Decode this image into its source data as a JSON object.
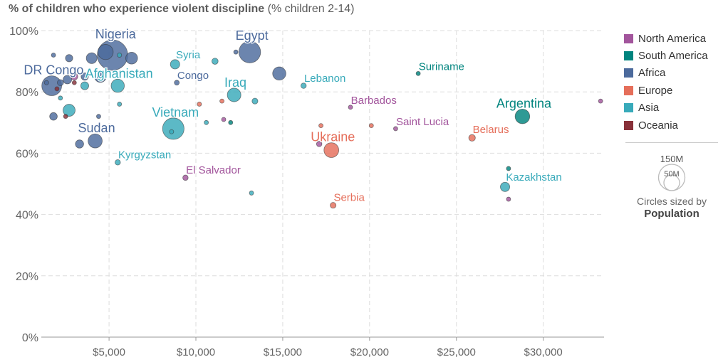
{
  "title": {
    "main": "% of children who experience violent discipline",
    "sub": " (% children 2-14)"
  },
  "legend": [
    {
      "name": "North America",
      "color": "#a2559c"
    },
    {
      "name": "South America",
      "color": "#00847e"
    },
    {
      "name": "Africa",
      "color": "#4c6a9c"
    },
    {
      "name": "Europe",
      "color": "#e56e5a"
    },
    {
      "name": "Asia",
      "color": "#38aaba"
    },
    {
      "name": "Oceania",
      "color": "#883039"
    }
  ],
  "size_legend": {
    "large_label": "150M",
    "small_label": "50M",
    "note": "Circles sized by",
    "variable": "Population"
  },
  "chart_data": {
    "type": "scatter",
    "title": "% of children who experience violent discipline",
    "subtitle": "(% children 2-14)",
    "xlabel": "",
    "ylabel": "",
    "xlim": [
      1100,
      33500
    ],
    "ylim": [
      0,
      100
    ],
    "x_ticks": [
      5000,
      10000,
      15000,
      20000,
      25000,
      30000
    ],
    "x_tick_labels": [
      "$5,000",
      "$10,000",
      "$15,000",
      "$20,000",
      "$25,000",
      "$30,000"
    ],
    "y_ticks": [
      0,
      20,
      40,
      60,
      80,
      100
    ],
    "y_tick_labels": [
      "0%",
      "20%",
      "40%",
      "60%",
      "80%",
      "100%"
    ],
    "grid": true,
    "legend_position": "right",
    "size_variable": "Population",
    "points": [
      {
        "label": "Nigeria",
        "region": "Africa",
        "x": 5200,
        "y": 92,
        "pop": 190
      },
      {
        "label": "Egypt",
        "region": "Africa",
        "x": 13100,
        "y": 93,
        "pop": 97
      },
      {
        "label": "DR Congo",
        "region": "Africa",
        "x": 1700,
        "y": 82,
        "pop": 81
      },
      {
        "label": "Sudan",
        "region": "Africa",
        "x": 4200,
        "y": 64,
        "pop": 41
      },
      {
        "label": "Congo",
        "region": "Africa",
        "x": 8900,
        "y": 83,
        "pop": 5
      },
      {
        "label": "Syria",
        "region": "Asia",
        "x": 8800,
        "y": 89,
        "pop": 18
      },
      {
        "label": "Afghanistan",
        "region": "Asia",
        "x": 5500,
        "y": 82,
        "pop": 36
      },
      {
        "label": "Vietnam",
        "region": "Asia",
        "x": 8700,
        "y": 68,
        "pop": 95
      },
      {
        "label": "Iraq",
        "region": "Asia",
        "x": 12200,
        "y": 79,
        "pop": 38
      },
      {
        "label": "Lebanon",
        "region": "Asia",
        "x": 16200,
        "y": 82,
        "pop": 6
      },
      {
        "label": "Kyrgyzstan",
        "region": "Asia",
        "x": 5500,
        "y": 57,
        "pop": 6
      },
      {
        "label": "Kazakhstan",
        "region": "Asia",
        "x": 27800,
        "y": 49,
        "pop": 18
      },
      {
        "label": "Suriname",
        "region": "South America",
        "x": 22800,
        "y": 86,
        "pop": 1
      },
      {
        "label": "Argentina",
        "region": "South America",
        "x": 28800,
        "y": 72,
        "pop": 44
      },
      {
        "label": "Barbados",
        "region": "North America",
        "x": 18900,
        "y": 75,
        "pop": 1
      },
      {
        "label": "Saint Lucia",
        "region": "North America",
        "x": 21500,
        "y": 68,
        "pop": 1
      },
      {
        "label": "El Salvador",
        "region": "North America",
        "x": 9400,
        "y": 52,
        "pop": 6
      },
      {
        "label": "Ukraine",
        "region": "Europe",
        "x": 17800,
        "y": 61,
        "pop": 45
      },
      {
        "label": "Belarus",
        "region": "Europe",
        "x": 25900,
        "y": 65,
        "pop": 9
      },
      {
        "label": "Serbia",
        "region": "Europe",
        "x": 17900,
        "y": 43,
        "pop": 7
      },
      {
        "label": "",
        "region": "Africa",
        "x": 1800,
        "y": 92,
        "pop": 3
      },
      {
        "label": "",
        "region": "Africa",
        "x": 2700,
        "y": 91,
        "pop": 11
      },
      {
        "label": "",
        "region": "Africa",
        "x": 4000,
        "y": 91,
        "pop": 24
      },
      {
        "label": "",
        "region": "Africa",
        "x": 4800,
        "y": 93,
        "pop": 48
      },
      {
        "label": "",
        "region": "Africa",
        "x": 6300,
        "y": 91,
        "pop": 29
      },
      {
        "label": "",
        "region": "Africa",
        "x": 12300,
        "y": 93,
        "pop": 3
      },
      {
        "label": "",
        "region": "Africa",
        "x": 14800,
        "y": 86,
        "pop": 36
      },
      {
        "label": "",
        "region": "Africa",
        "x": 1400,
        "y": 83,
        "pop": 4
      },
      {
        "label": "",
        "region": "Africa",
        "x": 2200,
        "y": 83,
        "pop": 8
      },
      {
        "label": "",
        "region": "Africa",
        "x": 2600,
        "y": 84,
        "pop": 15
      },
      {
        "label": "",
        "region": "Africa",
        "x": 3600,
        "y": 85,
        "pop": 11
      },
      {
        "label": "",
        "region": "Africa",
        "x": 4500,
        "y": 85,
        "pop": 28
      },
      {
        "label": "",
        "region": "Africa",
        "x": 1800,
        "y": 72,
        "pop": 12
      },
      {
        "label": "",
        "region": "Africa",
        "x": 3300,
        "y": 63,
        "pop": 14
      },
      {
        "label": "",
        "region": "Africa",
        "x": 4400,
        "y": 72,
        "pop": 1
      },
      {
        "label": "",
        "region": "Asia",
        "x": 5600,
        "y": 92,
        "pop": 4
      },
      {
        "label": "",
        "region": "Asia",
        "x": 11100,
        "y": 90,
        "pop": 8
      },
      {
        "label": "",
        "region": "Asia",
        "x": 3600,
        "y": 82,
        "pop": 13
      },
      {
        "label": "",
        "region": "Asia",
        "x": 2200,
        "y": 78,
        "pop": 3
      },
      {
        "label": "",
        "region": "Asia",
        "x": 2700,
        "y": 74,
        "pop": 30
      },
      {
        "label": "",
        "region": "Asia",
        "x": 5600,
        "y": 76,
        "pop": 2
      },
      {
        "label": "",
        "region": "Asia",
        "x": 13400,
        "y": 77,
        "pop": 7
      },
      {
        "label": "",
        "region": "Asia",
        "x": 10600,
        "y": 70,
        "pop": 1
      },
      {
        "label": "",
        "region": "Asia",
        "x": 8600,
        "y": 67,
        "pop": 2
      },
      {
        "label": "",
        "region": "Asia",
        "x": 13200,
        "y": 47,
        "pop": 1
      },
      {
        "label": "",
        "region": "South America",
        "x": 12000,
        "y": 70,
        "pop": 1
      },
      {
        "label": "",
        "region": "South America",
        "x": 28000,
        "y": 55,
        "pop": 1
      },
      {
        "label": "",
        "region": "North America",
        "x": 3000,
        "y": 85,
        "pop": 10
      },
      {
        "label": "",
        "region": "North America",
        "x": 11600,
        "y": 71,
        "pop": 1
      },
      {
        "label": "",
        "region": "North America",
        "x": 17100,
        "y": 63,
        "pop": 6
      },
      {
        "label": "",
        "region": "North America",
        "x": 28000,
        "y": 45,
        "pop": 2
      },
      {
        "label": "",
        "region": "North America",
        "x": 33300,
        "y": 77,
        "pop": 1
      },
      {
        "label": "",
        "region": "Europe",
        "x": 11500,
        "y": 77,
        "pop": 2
      },
      {
        "label": "",
        "region": "Europe",
        "x": 17200,
        "y": 69,
        "pop": 1
      },
      {
        "label": "",
        "region": "Europe",
        "x": 20100,
        "y": 69,
        "pop": 1
      },
      {
        "label": "",
        "region": "Europe",
        "x": 10200,
        "y": 76,
        "pop": 1
      },
      {
        "label": "",
        "region": "Oceania",
        "x": 2000,
        "y": 81,
        "pop": 1
      },
      {
        "label": "",
        "region": "Oceania",
        "x": 2500,
        "y": 72,
        "pop": 1
      },
      {
        "label": "",
        "region": "Oceania",
        "x": 3000,
        "y": 83,
        "pop": 1
      }
    ]
  }
}
